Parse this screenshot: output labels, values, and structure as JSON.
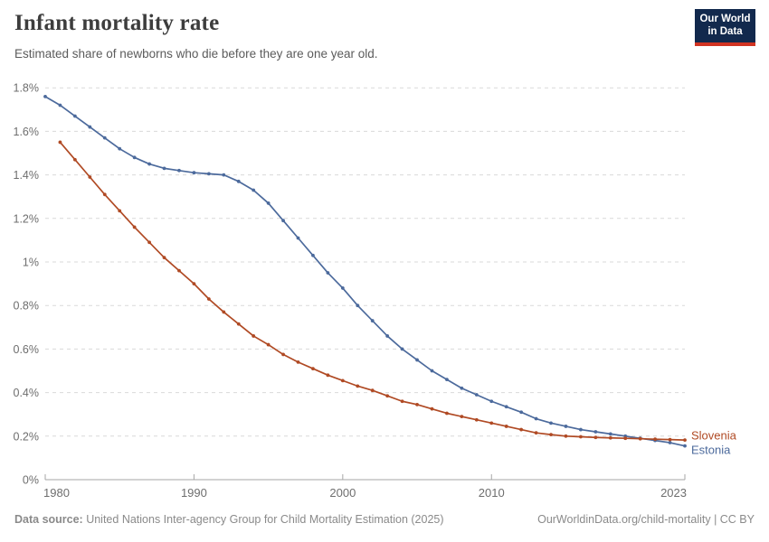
{
  "header": {
    "title": "Infant mortality rate",
    "subtitle": "Estimated share of newborns who die before they are one year old.",
    "logo": {
      "line1": "Our World",
      "line2": "in Data"
    }
  },
  "footer": {
    "source_label": "Data source:",
    "source_text": " United Nations Inter-agency Group for Child Mortality Estimation (2025)",
    "link_text": "OurWorldinData.org/child-mortality | CC BY"
  },
  "chart_data": {
    "type": "line",
    "title": "Infant mortality rate",
    "xlabel": "",
    "ylabel": "",
    "x_range": [
      1980,
      2023
    ],
    "y_range_percent": [
      0,
      1.8
    ],
    "grid": true,
    "grid_style": "dashed",
    "legend_position": "line-end-labels",
    "x_ticks": [
      {
        "year": 1980,
        "label": "1980"
      },
      {
        "year": 1990,
        "label": "1990"
      },
      {
        "year": 2000,
        "label": "2000"
      },
      {
        "year": 2010,
        "label": "2010"
      },
      {
        "year": 2023,
        "label": "2023"
      }
    ],
    "y_ticks": [
      {
        "value": 0,
        "label": "0%"
      },
      {
        "value": 0.2,
        "label": "0.2%"
      },
      {
        "value": 0.4,
        "label": "0.4%"
      },
      {
        "value": 0.6,
        "label": "0.6%"
      },
      {
        "value": 0.8,
        "label": "0.8%"
      },
      {
        "value": 1.0,
        "label": "1%"
      },
      {
        "value": 1.2,
        "label": "1.2%"
      },
      {
        "value": 1.4,
        "label": "1.4%"
      },
      {
        "value": 1.6,
        "label": "1.6%"
      },
      {
        "value": 1.8,
        "label": "1.8%"
      }
    ],
    "series": [
      {
        "name": "Estonia",
        "color": "#4c6a9c",
        "start_year": 1980,
        "values_percent": [
          1.76,
          1.72,
          1.67,
          1.62,
          1.57,
          1.52,
          1.48,
          1.45,
          1.43,
          1.42,
          1.41,
          1.405,
          1.4,
          1.37,
          1.33,
          1.27,
          1.19,
          1.11,
          1.03,
          0.95,
          0.88,
          0.8,
          0.73,
          0.66,
          0.6,
          0.55,
          0.5,
          0.46,
          0.42,
          0.39,
          0.36,
          0.335,
          0.31,
          0.28,
          0.26,
          0.245,
          0.23,
          0.22,
          0.21,
          0.2,
          0.19,
          0.18,
          0.17,
          0.155
        ]
      },
      {
        "name": "Slovenia",
        "color": "#b04a24",
        "start_year": 1981,
        "values_percent": [
          1.55,
          1.47,
          1.39,
          1.31,
          1.235,
          1.16,
          1.09,
          1.02,
          0.96,
          0.9,
          0.83,
          0.77,
          0.715,
          0.66,
          0.62,
          0.575,
          0.54,
          0.51,
          0.48,
          0.455,
          0.43,
          0.41,
          0.385,
          0.36,
          0.345,
          0.325,
          0.305,
          0.29,
          0.275,
          0.26,
          0.245,
          0.23,
          0.215,
          0.207,
          0.2,
          0.197,
          0.194,
          0.192,
          0.19,
          0.188,
          0.186,
          0.184,
          0.182
        ]
      }
    ]
  },
  "colors": {
    "estonia_line": "#4c6a9c",
    "slovenia_line": "#b04a24",
    "grid": "#d9d9d9",
    "axis": "#a6a6a6",
    "logo_bg": "#12294d",
    "logo_bar": "#d13322"
  }
}
